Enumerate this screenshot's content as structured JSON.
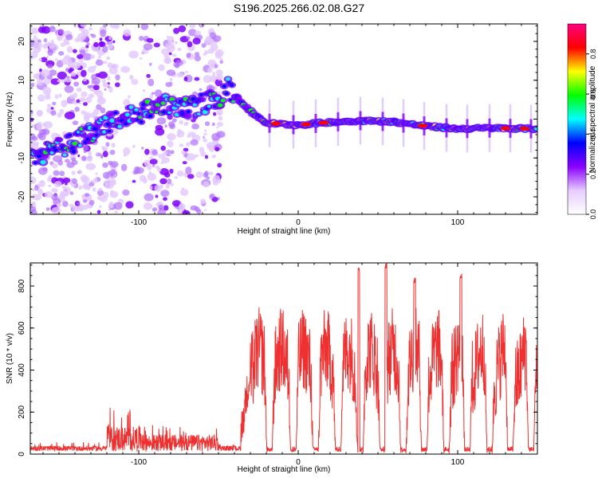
{
  "title": "S196.2025.266.02.08.G27",
  "chart_data": [
    {
      "type": "heatmap",
      "title": "",
      "xlabel": "Height of straight line (km)",
      "ylabel": "Frequency (Hz)",
      "xlim": [
        -168,
        150
      ],
      "ylim": [
        -24.5,
        24.5
      ],
      "xticks": [
        -100,
        0,
        100
      ],
      "yticks": [
        -20,
        -10,
        0,
        10,
        20
      ],
      "colorbar": {
        "label": "Normalized spectral amplitude",
        "range": [
          0,
          0.95
        ],
        "ticks": [
          0.0,
          0.2,
          0.4,
          0.6,
          0.8
        ],
        "tick_labels": [
          "0.0",
          "0.2",
          "0.4",
          "0.6",
          "0.8"
        ],
        "colors": [
          "#ffffff",
          "#e6ccff",
          "#8a00ff",
          "#0000ff",
          "#00ffff",
          "#00ff00",
          "#ffff00",
          "#ff0000",
          "#ff0080"
        ]
      },
      "noise_regions": [
        {
          "x": [
            -168,
            -115
          ],
          "y": [
            -24.5,
            24.5
          ],
          "density": 1.0
        },
        {
          "x": [
            -115,
            -95
          ],
          "y": [
            -24.5,
            24.5
          ],
          "density": 0.25
        },
        {
          "x": [
            -95,
            -48
          ],
          "y": [
            -24.5,
            24.5
          ],
          "density": 0.7
        }
      ],
      "trace_line": {
        "x": [
          -168,
          -140,
          -125,
          -115,
          -100,
          -90,
          -80,
          -70,
          -60,
          -50,
          -44,
          -40,
          -35,
          -30,
          -25,
          -20,
          -10,
          0,
          20,
          40,
          60,
          80,
          100,
          120,
          150
        ],
        "frequency": [
          -10,
          -6,
          -2,
          0,
          1.5,
          3,
          3.5,
          3,
          4,
          5,
          8,
          6,
          4,
          2,
          0.5,
          -1,
          -1.3,
          -1.5,
          -0.8,
          -0.4,
          -0.7,
          -1.8,
          -2.5,
          -2.3,
          -2.5
        ],
        "peak_amplitude": 0.9
      },
      "vertical_streaks_x": [
        -18,
        -3,
        11,
        25,
        39,
        53,
        66,
        79,
        93,
        106,
        120,
        133,
        146
      ]
    },
    {
      "type": "line",
      "title": "",
      "xlabel": "Height of straight line (km)",
      "ylabel": "SNR (10 * v/v)",
      "xlim": [
        -168,
        150
      ],
      "ylim": [
        0,
        910
      ],
      "xticks": [
        -100,
        0,
        100
      ],
      "yticks": [
        0,
        200,
        400,
        600,
        800
      ],
      "color": "#ee3030",
      "segments": [
        {
          "x": [
            -168,
            -120
          ],
          "baseline": 25,
          "amplitude": 12
        },
        {
          "x": [
            -120,
            -95
          ],
          "baseline": 60,
          "amplitude": 60
        },
        {
          "x": [
            -95,
            -50
          ],
          "baseline": 45,
          "amplitude": 40
        },
        {
          "x": [
            -50,
            -36
          ],
          "baseline": 25,
          "amplitude": 12
        },
        {
          "x": [
            -36,
            150
          ],
          "baseline": 420,
          "amplitude": 200
        }
      ],
      "dips_x": [
        -18,
        -3,
        11,
        25,
        39,
        53,
        66,
        79,
        93,
        106,
        120,
        133,
        146
      ],
      "peaks": [
        {
          "x": 38,
          "y": 890
        },
        {
          "x": 55,
          "y": 910
        },
        {
          "x": 73,
          "y": 840
        },
        {
          "x": 102,
          "y": 860
        }
      ]
    }
  ]
}
